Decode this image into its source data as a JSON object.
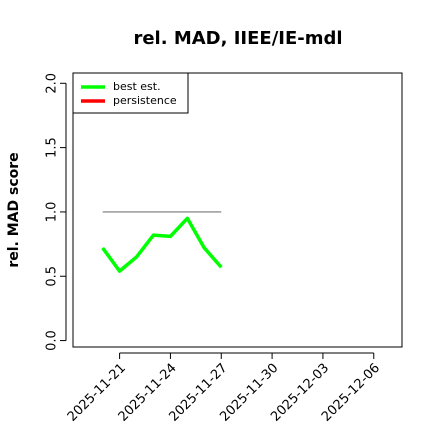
{
  "chart_data": {
    "type": "line",
    "title": "rel. MAD, IIEE/IE-mdl",
    "y_label": "rel. MAD score",
    "x": [
      "2025-11-20",
      "2025-11-21",
      "2025-11-22",
      "2025-11-23",
      "2025-11-24",
      "2025-11-25",
      "2025-11-26",
      "2025-11-27"
    ],
    "series": [
      {
        "name": "best est.",
        "color": "#00ff00",
        "values": [
          0.72,
          0.54,
          0.65,
          0.82,
          0.81,
          0.95,
          0.72,
          0.57
        ]
      },
      {
        "name": "persistence",
        "color": "#ff0000",
        "values": [
          null,
          null,
          null,
          null,
          null,
          null,
          null,
          null
        ]
      }
    ],
    "reference_line": {
      "value": 1.0,
      "color": "#777777",
      "x": [
        "2025-11-20",
        "2025-11-27"
      ]
    },
    "xlim": [
      "2025-11-18T06:00",
      "2025-12-07T16:00"
    ],
    "xticks": [
      "2025-11-21",
      "2025-11-24",
      "2025-11-27",
      "2025-11-30",
      "2025-12-03",
      "2025-12-06"
    ],
    "ylim": [
      -0.05,
      2.08
    ],
    "yticks": [
      0.0,
      0.5,
      1.0,
      1.5,
      2.0
    ],
    "legend": "top-left"
  }
}
